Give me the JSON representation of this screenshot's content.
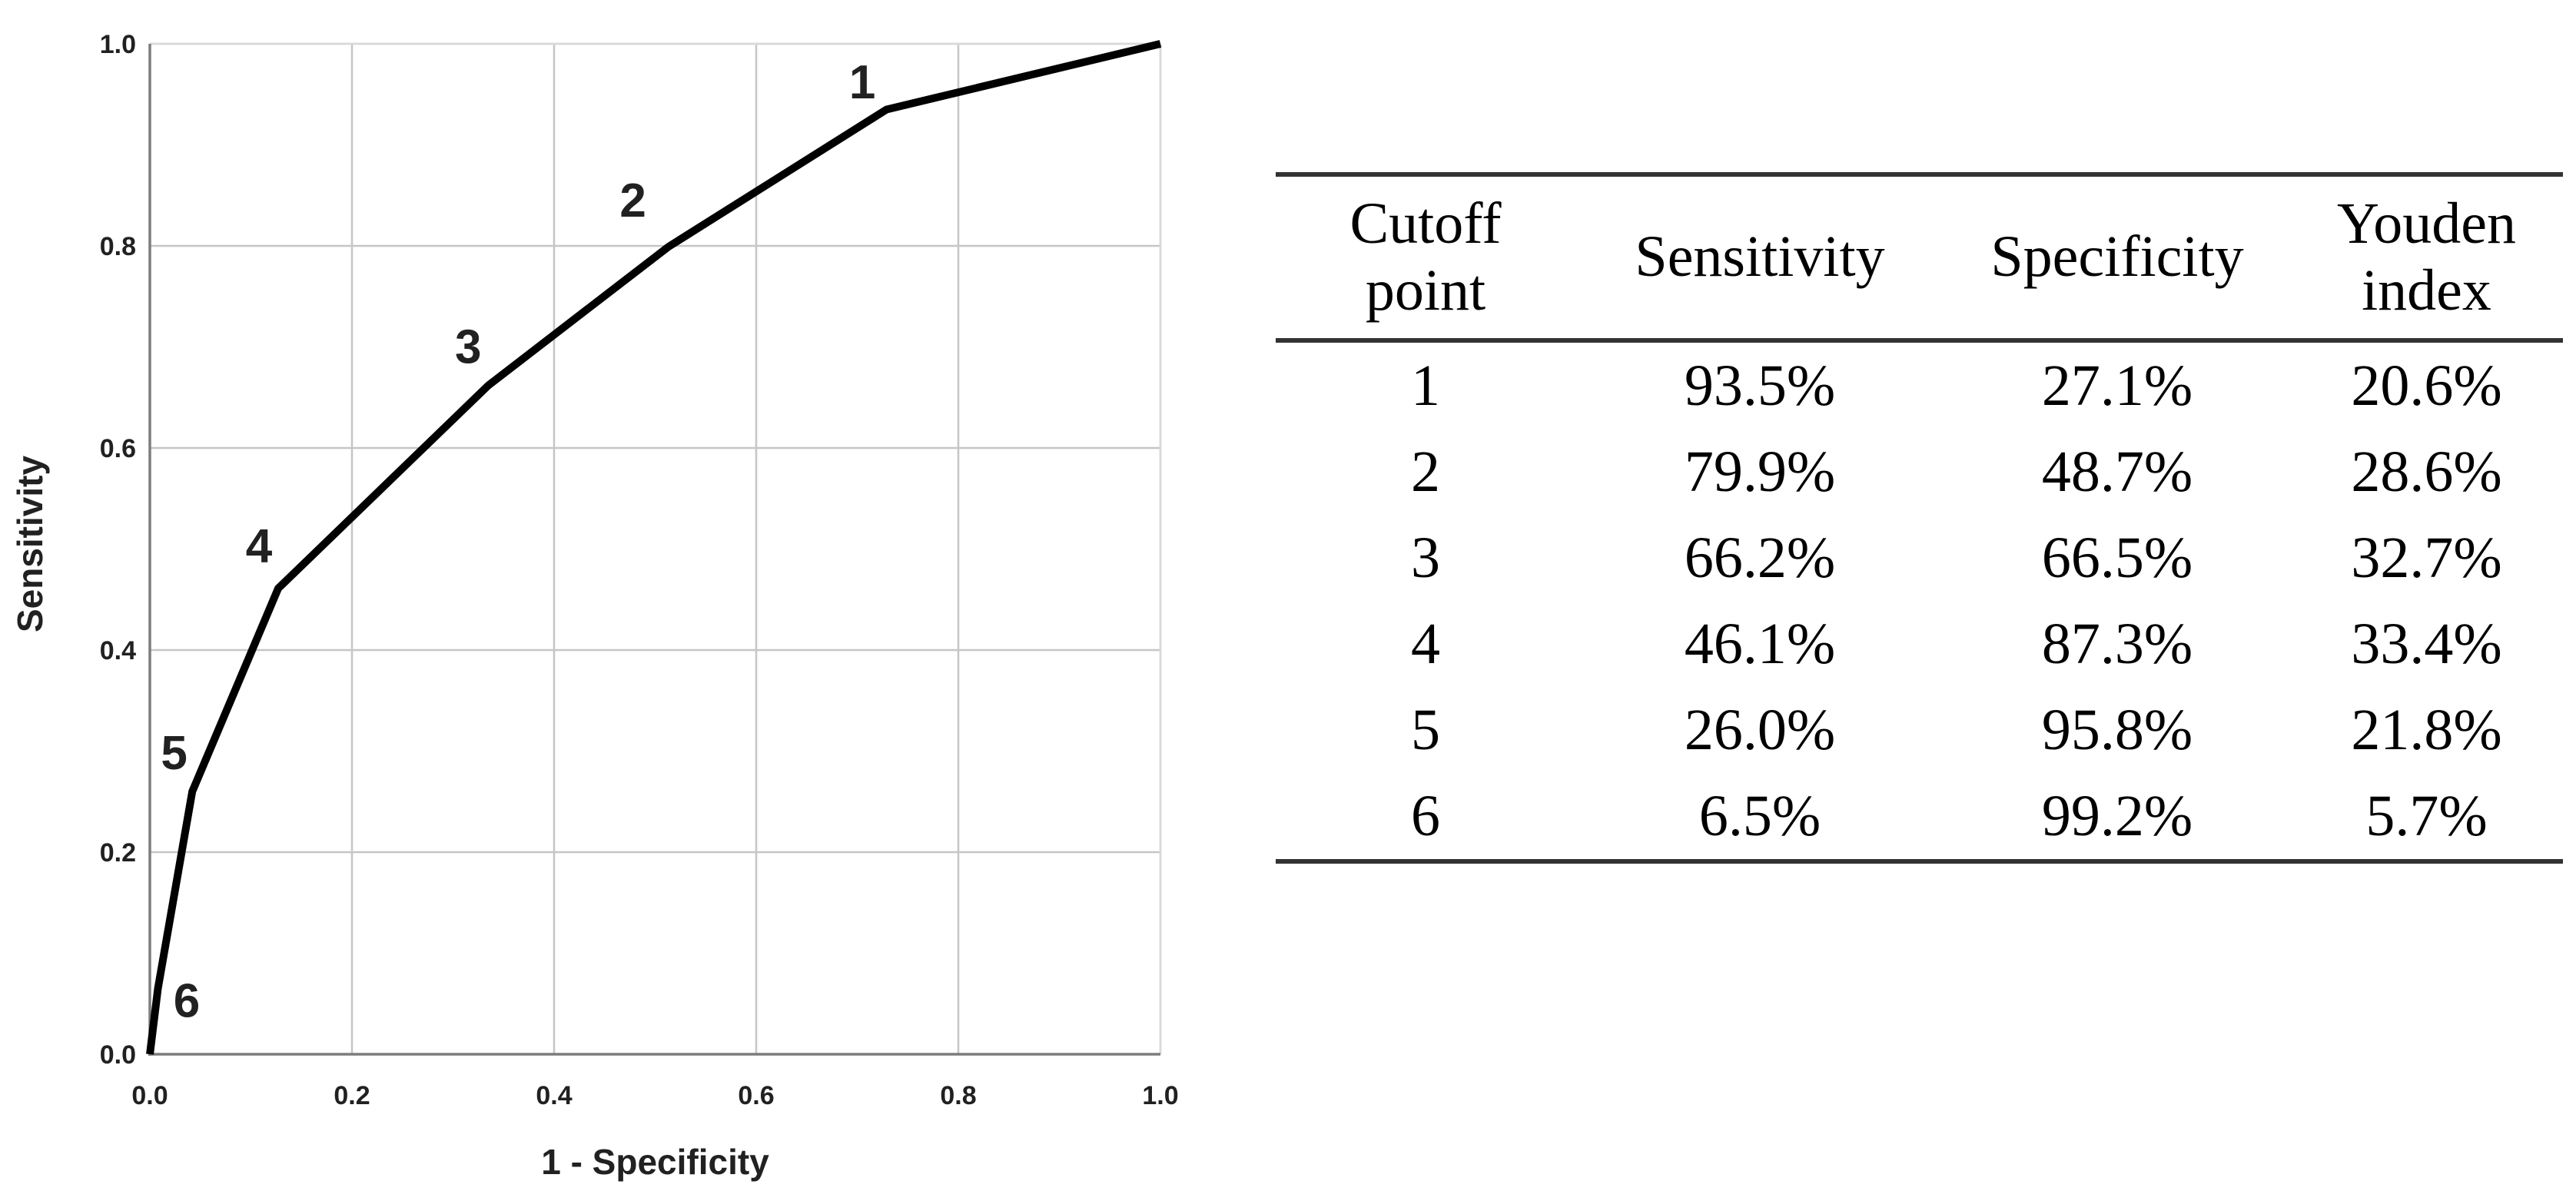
{
  "figure": {
    "background": "#ffffff",
    "description": "ROC curve with numbered cutoff points and a table of sensitivity, specificity and Youden index per cutoff point"
  },
  "chart_data": {
    "type": "line",
    "title": "",
    "xlabel": "1 - Specificity",
    "ylabel": "Sensitivity",
    "xlim": [
      0.0,
      1.0
    ],
    "ylim": [
      0.0,
      1.0
    ],
    "grid": "on",
    "legend": "none",
    "xticks": {
      "values": [
        0.0,
        0.2,
        0.4,
        0.6,
        0.8,
        1.0
      ],
      "labels": [
        "0.0",
        "0.2",
        "0.4",
        "0.6",
        "0.8",
        "1.0"
      ]
    },
    "yticks": {
      "values": [
        0.0,
        0.2,
        0.4,
        0.6,
        0.8,
        1.0
      ],
      "labels": [
        "0.0",
        "0.2",
        "0.4",
        "0.6",
        "0.8",
        "1.0"
      ]
    },
    "series": [
      {
        "name": "ROC curve",
        "color": "#000000",
        "points": [
          {
            "x": 0.0,
            "y": 0.0
          },
          {
            "x": 0.008,
            "y": 0.065,
            "cutoff": "6"
          },
          {
            "x": 0.042,
            "y": 0.26,
            "cutoff": "5"
          },
          {
            "x": 0.127,
            "y": 0.461,
            "cutoff": "4"
          },
          {
            "x": 0.335,
            "y": 0.662,
            "cutoff": "3"
          },
          {
            "x": 0.513,
            "y": 0.799,
            "cutoff": "2"
          },
          {
            "x": 0.729,
            "y": 0.935,
            "cutoff": "1"
          },
          {
            "x": 1.0,
            "y": 1.0
          }
        ]
      }
    ],
    "point_labels": [
      {
        "text": "1",
        "x": 0.705,
        "y": 0.962
      },
      {
        "text": "2",
        "x": 0.478,
        "y": 0.845
      },
      {
        "text": "3",
        "x": 0.315,
        "y": 0.7
      },
      {
        "text": "4",
        "x": 0.108,
        "y": 0.503
      },
      {
        "text": "5",
        "x": 0.024,
        "y": 0.298
      },
      {
        "text": "6",
        "x": 0.0365,
        "y": 0.053
      }
    ]
  },
  "table": {
    "headers": [
      "Cutoff\npoint",
      "Sensitivity",
      "Specificity",
      "Youden\nindex"
    ],
    "rows": [
      [
        "1",
        "93.5%",
        "27.1%",
        "20.6%"
      ],
      [
        "2",
        "79.9%",
        "48.7%",
        "28.6%"
      ],
      [
        "3",
        "66.2%",
        "66.5%",
        "32.7%"
      ],
      [
        "4",
        "46.1%",
        "87.3%",
        "33.4%"
      ],
      [
        "5",
        "26.0%",
        "95.8%",
        "21.8%"
      ],
      [
        "6",
        "6.5%",
        "99.2%",
        "5.7%"
      ]
    ]
  },
  "colors": {
    "curve": "#000000",
    "gridline": "#c6c6c6",
    "axis": "#7d7d7d",
    "plot_border": "#d9d9d9",
    "chart_text": "#212121",
    "table_rule": "#333333",
    "table_text": "#000000"
  }
}
